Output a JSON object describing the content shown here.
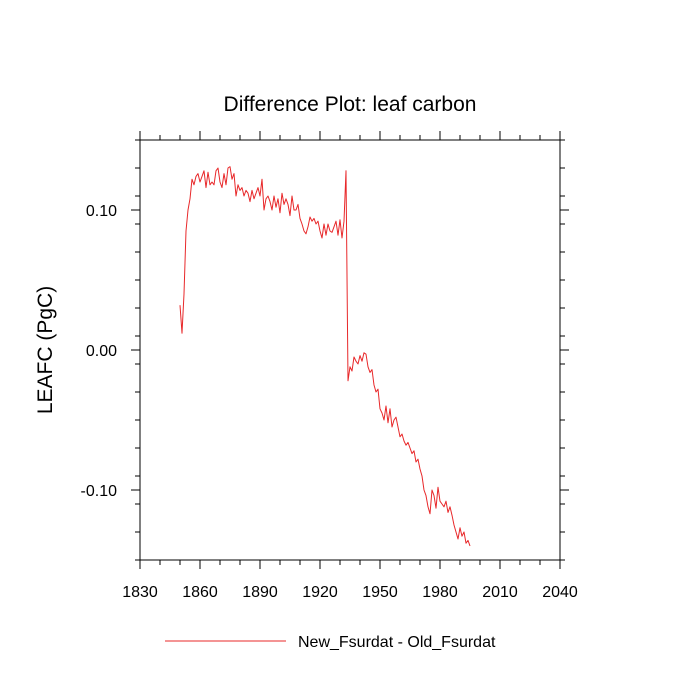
{
  "chart_data": {
    "type": "line",
    "title": "Difference Plot: leaf carbon",
    "xlabel": "",
    "ylabel": "LEAFC  (PgC)",
    "xlim": [
      1830,
      2040
    ],
    "ylim": [
      -0.15,
      0.15
    ],
    "x_ticks": [
      1830,
      1860,
      1890,
      1920,
      1950,
      1980,
      2010,
      2040
    ],
    "x_tick_labels": [
      "1830",
      "1860",
      "1890",
      "1920",
      "1950",
      "1980",
      "2010",
      "2040"
    ],
    "y_ticks": [
      0.1,
      0.0,
      -0.1
    ],
    "y_tick_labels": [
      "0.10",
      "0.00",
      "-0.10"
    ],
    "x_minor_step": 10,
    "y_minor_step": 0.02,
    "grid": false,
    "legend_position": "bottom-center",
    "series": [
      {
        "name": "New_Fsurdat - Old_Fsurdat",
        "color": "#e8282a",
        "x_start": 1850,
        "x_step": 1,
        "values": [
          0.032,
          0.012,
          0.04,
          0.085,
          0.1,
          0.108,
          0.122,
          0.118,
          0.124,
          0.126,
          0.12,
          0.124,
          0.128,
          0.116,
          0.127,
          0.118,
          0.12,
          0.118,
          0.128,
          0.13,
          0.12,
          0.116,
          0.126,
          0.118,
          0.13,
          0.131,
          0.122,
          0.126,
          0.11,
          0.118,
          0.114,
          0.116,
          0.11,
          0.114,
          0.112,
          0.106,
          0.114,
          0.108,
          0.112,
          0.116,
          0.11,
          0.122,
          0.1,
          0.108,
          0.11,
          0.106,
          0.1,
          0.11,
          0.102,
          0.108,
          0.098,
          0.112,
          0.104,
          0.108,
          0.104,
          0.096,
          0.11,
          0.1,
          0.1,
          0.104,
          0.094,
          0.09,
          0.085,
          0.083,
          0.088,
          0.095,
          0.092,
          0.094,
          0.09,
          0.092,
          0.085,
          0.08,
          0.09,
          0.082,
          0.09,
          0.085,
          0.084,
          0.088,
          0.092,
          0.082,
          0.093,
          0.08,
          0.092,
          0.128,
          -0.022,
          -0.012,
          -0.015,
          -0.005,
          -0.008,
          -0.01,
          -0.004,
          -0.008,
          -0.002,
          -0.003,
          -0.012,
          -0.016,
          -0.014,
          -0.025,
          -0.03,
          -0.028,
          -0.042,
          -0.045,
          -0.05,
          -0.04,
          -0.052,
          -0.042,
          -0.055,
          -0.05,
          -0.048,
          -0.055,
          -0.062,
          -0.06,
          -0.065,
          -0.068,
          -0.066,
          -0.07,
          -0.074,
          -0.072,
          -0.08,
          -0.078,
          -0.085,
          -0.09,
          -0.1,
          -0.104,
          -0.112,
          -0.117,
          -0.1,
          -0.104,
          -0.113,
          -0.098,
          -0.108,
          -0.11,
          -0.112,
          -0.108,
          -0.116,
          -0.112,
          -0.118,
          -0.125,
          -0.13,
          -0.135,
          -0.127,
          -0.133,
          -0.13,
          -0.138,
          -0.136,
          -0.14
        ]
      }
    ]
  }
}
